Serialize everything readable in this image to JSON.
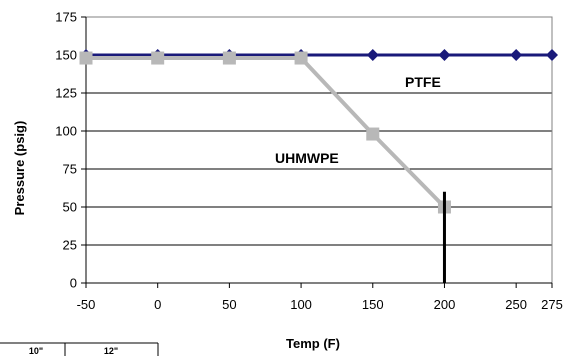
{
  "chart_data": {
    "type": "line",
    "xlabel": "Temp (F)",
    "ylabel": "Pressure (psig)",
    "xlim": [
      -50,
      275
    ],
    "ylim": [
      0,
      175
    ],
    "x_ticks": [
      -50,
      0,
      50,
      100,
      150,
      200,
      250,
      275
    ],
    "y_ticks": [
      0,
      25,
      50,
      75,
      100,
      125,
      150,
      175
    ],
    "grid": "horizontal",
    "series": [
      {
        "name": "PTFE",
        "color": "#1a1a7a",
        "marker": "diamond",
        "x": [
          -50,
          0,
          50,
          100,
          150,
          200,
          250,
          275
        ],
        "y": [
          150,
          150,
          150,
          150,
          150,
          150,
          150,
          150
        ]
      },
      {
        "name": "UHMWPE",
        "color": "#b8b8b8",
        "marker": "square",
        "x": [
          -50,
          0,
          50,
          100,
          150,
          200
        ],
        "y": [
          148,
          148,
          148,
          148,
          98,
          50
        ]
      }
    ],
    "vertical_marker": {
      "x": 200,
      "y_top": 60,
      "color": "#000000"
    }
  },
  "table_fragment": {
    "headers": [
      "10\"",
      "12\""
    ]
  }
}
